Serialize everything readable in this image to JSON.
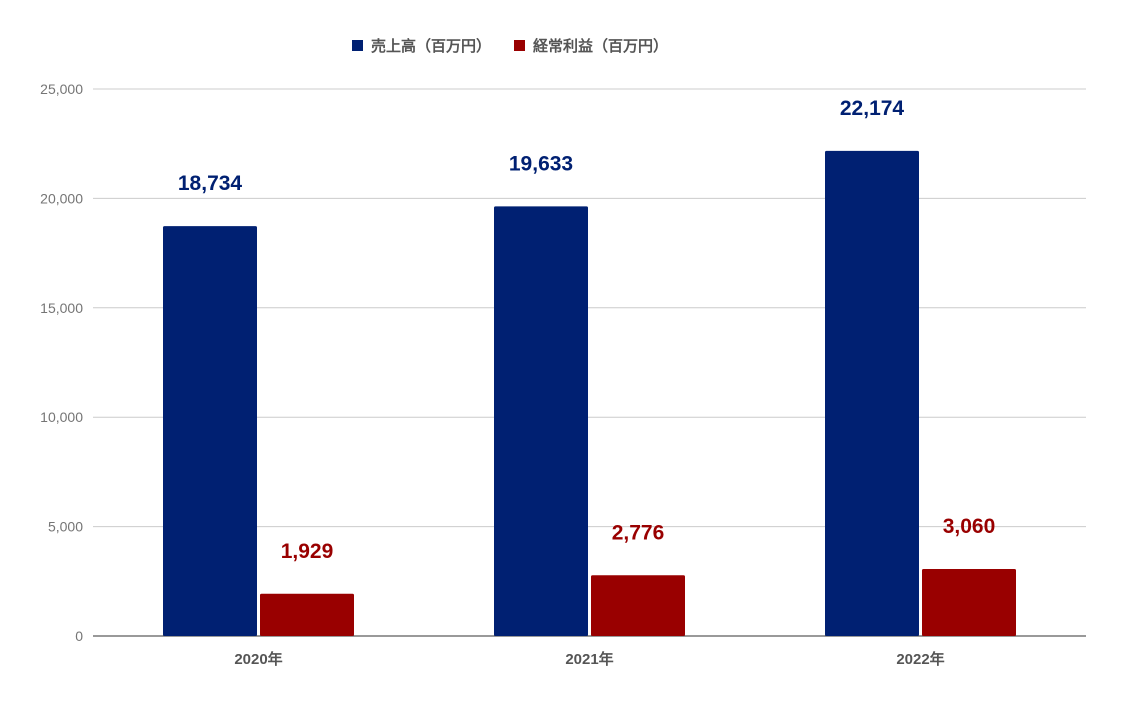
{
  "chart_data": {
    "type": "bar",
    "categories": [
      "2020年",
      "2021年",
      "2022年"
    ],
    "series": [
      {
        "name": "売上高（百万円）",
        "color": "#002072",
        "values": [
          18734,
          19633,
          22174
        ],
        "labels": [
          "18,734",
          "19,633",
          "22,174"
        ]
      },
      {
        "name": "経常利益（百万円）",
        "color": "#990000",
        "values": [
          1929,
          2776,
          3060
        ],
        "labels": [
          "1,929",
          "2,776",
          "3,060"
        ]
      }
    ],
    "ylim": [
      0,
      25000
    ],
    "yticks": [
      0,
      5000,
      10000,
      15000,
      20000,
      25000
    ],
    "ytick_labels": [
      "0",
      "5,000",
      "10,000",
      "15,000",
      "20,000",
      "25,000"
    ],
    "grid": true,
    "legend_position": "top-center",
    "title": "",
    "xlabel": "",
    "ylabel": ""
  }
}
